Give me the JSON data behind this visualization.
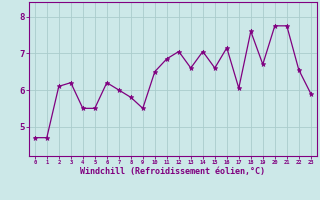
{
  "x": [
    0,
    1,
    2,
    3,
    4,
    5,
    6,
    7,
    8,
    9,
    10,
    11,
    12,
    13,
    14,
    15,
    16,
    17,
    18,
    19,
    20,
    21,
    22,
    23
  ],
  "y": [
    4.7,
    4.7,
    6.1,
    6.2,
    5.5,
    5.5,
    6.2,
    6.0,
    5.8,
    5.5,
    6.5,
    6.85,
    7.05,
    6.6,
    7.05,
    6.6,
    7.15,
    6.05,
    7.6,
    6.7,
    7.75,
    7.75,
    6.55,
    5.9
  ],
  "line_color": "#800080",
  "marker": "*",
  "marker_color": "#800080",
  "bg_color": "#cce8e8",
  "grid_color": "#aacccc",
  "axis_color": "#800080",
  "tick_color": "#800080",
  "xlabel": "Windchill (Refroidissement éolien,°C)",
  "xlabel_color": "#800080",
  "yticks": [
    5,
    6,
    7,
    8
  ],
  "ylim": [
    4.2,
    8.4
  ],
  "xlim": [
    -0.5,
    23.5
  ],
  "font_family": "monospace"
}
